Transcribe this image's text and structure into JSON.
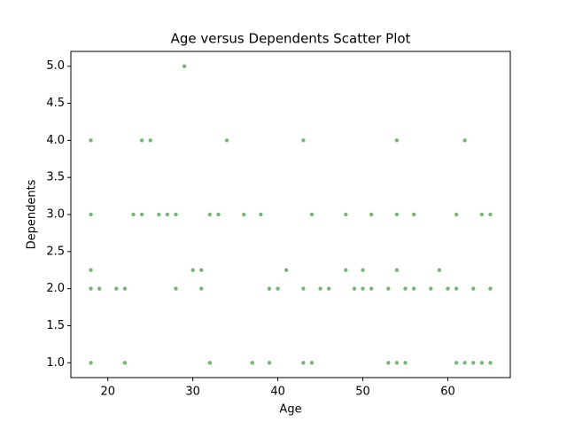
{
  "chart_data": {
    "type": "scatter",
    "title": "Age versus Dependents Scatter Plot",
    "x_label": "Age",
    "y_label": "Dependents",
    "color": "#008000",
    "x": [
      29,
      18,
      24,
      25,
      34,
      43,
      54,
      62,
      18,
      23,
      24,
      26,
      27,
      28,
      32,
      33,
      36,
      38,
      44,
      48,
      51,
      54,
      56,
      61,
      64,
      65,
      18,
      30,
      31,
      41,
      48,
      50,
      54,
      59,
      18,
      19,
      21,
      22,
      28,
      31,
      39,
      40,
      43,
      45,
      46,
      49,
      50,
      51,
      53,
      55,
      56,
      58,
      60,
      61,
      63,
      65,
      18,
      22,
      32,
      37,
      39,
      43,
      44,
      53,
      54,
      55,
      61,
      62,
      63,
      64,
      65
    ],
    "y": [
      5,
      4,
      4,
      4,
      4,
      4,
      4,
      4,
      3,
      3,
      3,
      3,
      3,
      3,
      3,
      3,
      3,
      3,
      3,
      3,
      3,
      3,
      3,
      3,
      3,
      3,
      2.25,
      2.25,
      2.25,
      2.25,
      2.25,
      2.25,
      2.25,
      2.25,
      2,
      2,
      2,
      2,
      2,
      2,
      2,
      2,
      2,
      2,
      2,
      2,
      2,
      2,
      2,
      2,
      2,
      2,
      2,
      2,
      2,
      2,
      1,
      1,
      1,
      1,
      1,
      1,
      1,
      1,
      1,
      1,
      1,
      1,
      1,
      1,
      1
    ],
    "xlim": [
      15.65,
      67.35
    ],
    "ylim": [
      0.8,
      5.2
    ],
    "xticks": [
      20,
      30,
      40,
      50,
      60
    ],
    "yticks": [
      {
        "value": 1,
        "label": "1.0"
      },
      1.5,
      {
        "value": 2,
        "label": "2.0"
      },
      2.5,
      {
        "value": 3,
        "label": "3.0"
      },
      3.5,
      {
        "value": 4,
        "label": "4.0"
      },
      4.5,
      {
        "value": 5,
        "label": "5.0"
      }
    ]
  }
}
